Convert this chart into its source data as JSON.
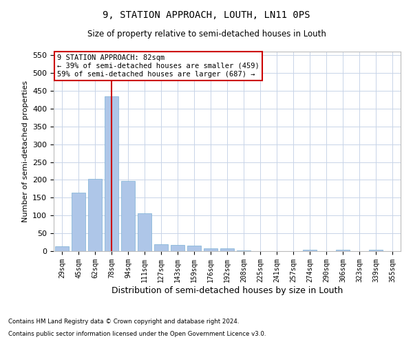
{
  "title": "9, STATION APPROACH, LOUTH, LN11 0PS",
  "subtitle": "Size of property relative to semi-detached houses in Louth",
  "xlabel": "Distribution of semi-detached houses by size in Louth",
  "ylabel": "Number of semi-detached properties",
  "categories": [
    "29sqm",
    "45sqm",
    "62sqm",
    "78sqm",
    "94sqm",
    "111sqm",
    "127sqm",
    "143sqm",
    "159sqm",
    "176sqm",
    "192sqm",
    "208sqm",
    "225sqm",
    "241sqm",
    "257sqm",
    "274sqm",
    "290sqm",
    "306sqm",
    "323sqm",
    "339sqm",
    "355sqm"
  ],
  "values": [
    13,
    165,
    203,
    435,
    197,
    106,
    19,
    18,
    15,
    7,
    8,
    2,
    0,
    0,
    0,
    4,
    0,
    4,
    0,
    4,
    0
  ],
  "bar_color": "#aec6e8",
  "bar_edge_color": "#7aafd4",
  "vline_color": "#cc0000",
  "vline_x": 3,
  "annotation_title": "9 STATION APPROACH: 82sqm",
  "annotation_line1": "← 39% of semi-detached houses are smaller (459)",
  "annotation_line2": "59% of semi-detached houses are larger (687) →",
  "ylim": [
    0,
    560
  ],
  "yticks": [
    0,
    50,
    100,
    150,
    200,
    250,
    300,
    350,
    400,
    450,
    500,
    550
  ],
  "footnote1": "Contains HM Land Registry data © Crown copyright and database right 2024.",
  "footnote2": "Contains public sector information licensed under the Open Government Licence v3.0.",
  "background_color": "#ffffff",
  "grid_color": "#c8d4e8"
}
